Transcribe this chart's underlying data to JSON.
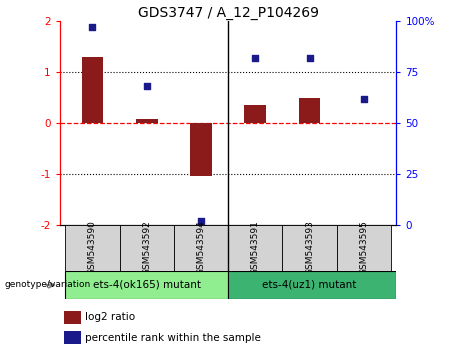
{
  "title": "GDS3747 / A_12_P104269",
  "samples": [
    "GSM543590",
    "GSM543592",
    "GSM543594",
    "GSM543591",
    "GSM543593",
    "GSM543595"
  ],
  "log2_ratio": [
    1.3,
    0.07,
    -1.05,
    0.35,
    0.5,
    0.0
  ],
  "percentile_rank": [
    97,
    68,
    2,
    82,
    82,
    62
  ],
  "group1_label": "ets-4(ok165) mutant",
  "group2_label": "ets-4(uz1) mutant",
  "bar_color": "#8B1A1A",
  "dot_color": "#1A1A8B",
  "ylim_left": [
    -2,
    2
  ],
  "ylim_right": [
    0,
    100
  ],
  "yticks_left": [
    -2,
    -1,
    0,
    1,
    2
  ],
  "ytick_labels_left": [
    "-2",
    "-1",
    "0",
    "1",
    "2"
  ],
  "yticks_right": [
    0,
    25,
    50,
    75,
    100
  ],
  "ytick_labels_right": [
    "0",
    "25",
    "50",
    "75",
    "100%"
  ],
  "legend_log2": "log2 ratio",
  "legend_pct": "percentile rank within the sample",
  "genotype_label": "genotype/variation",
  "group1_color": "#90EE90",
  "group2_color": "#3CB371",
  "sample_box_color": "#D3D3D3",
  "bg_color": "#FFFFFF"
}
